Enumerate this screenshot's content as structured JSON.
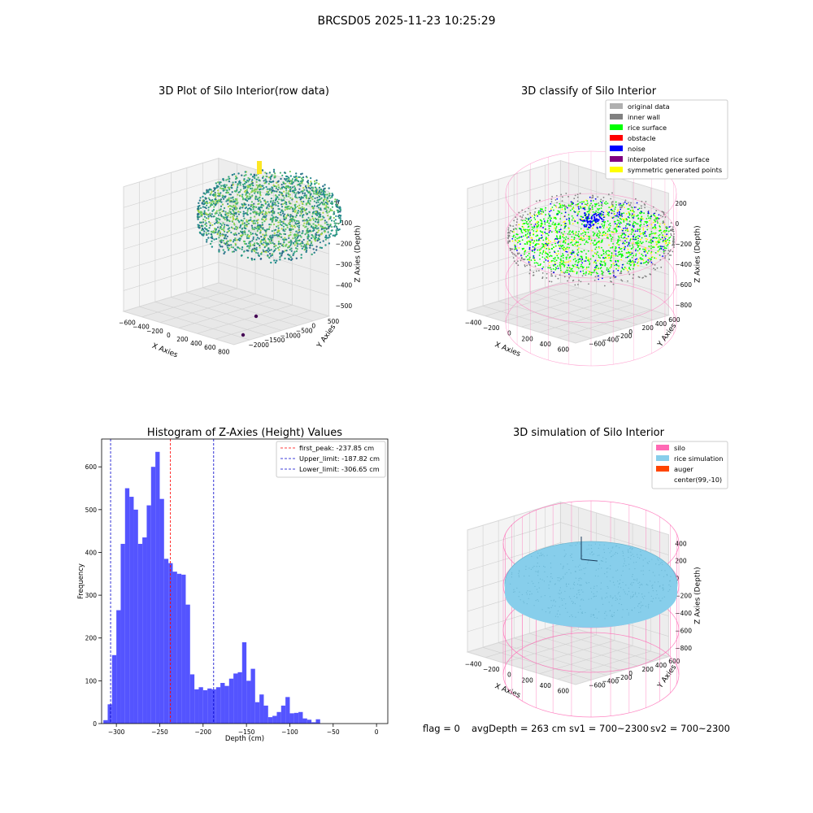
{
  "figure": {
    "suptitle": "BRCSD05 2025-11-23 10:25:29",
    "footer": {
      "flag": "flag = 0",
      "avg": "avgDepth = 263 cm",
      "sv1": "sv1 = 700~2300",
      "sv2": "sv2 = 700~2300"
    }
  },
  "colors": {
    "hist_bar": "#4b4bff",
    "peak_line": "#ff0000",
    "limit_line": "#0000cc",
    "silo_pink": "#ff69b4",
    "rice_sim": "#87ceeb",
    "auger": "#ff4500",
    "inner_wall": "#808080",
    "rice_surface": "#00ff00",
    "obstacle": "#ff0000",
    "noise": "#0000ff",
    "interp_surface": "#800080",
    "symmetric": "#ffff00",
    "original": "#b0b0b0"
  },
  "chart_data": [
    {
      "type": "scatter",
      "subtype": "3d",
      "title": "3D Plot of Silo Interior(row data)",
      "xlabel": "X Axies",
      "ylabel": "Y Axies",
      "zlabel": "Z Axies (Depth)",
      "xticks": [
        "−600",
        "−400",
        "−200",
        "0",
        "200",
        "400",
        "600",
        "800"
      ],
      "yticks": [
        "500",
        "0",
        "−500",
        "−1000",
        "−1500",
        "−2000"
      ],
      "zticks": [
        "0",
        "−100",
        "−200",
        "−300",
        "−400",
        "−500"
      ],
      "colormap": "viridis"
    },
    {
      "type": "scatter",
      "subtype": "3d",
      "title": "3D classify of Silo Interior",
      "xlabel": "X Axies",
      "ylabel": "Y Axies",
      "zlabel": "Z Axies (Depth)",
      "xticks": [
        "−400",
        "−200",
        "0",
        "200",
        "400",
        "600"
      ],
      "yticks": [
        "600",
        "400",
        "200",
        "0",
        "−200",
        "−400",
        "−600"
      ],
      "zticks": [
        "200",
        "0",
        "−200",
        "−400",
        "−600",
        "−800"
      ],
      "legend": [
        {
          "label": "original data",
          "color": "#b0b0b0"
        },
        {
          "label": "inner wall",
          "color": "#808080"
        },
        {
          "label": "rice surface",
          "color": "#00ff00"
        },
        {
          "label": "obstacle",
          "color": "#ff0000"
        },
        {
          "label": "noise",
          "color": "#0000ff"
        },
        {
          "label": "interpolated rice surface",
          "color": "#800080"
        },
        {
          "label": "symmetric generated points",
          "color": "#ffff00"
        }
      ],
      "legend_position": "top-right"
    },
    {
      "type": "bar",
      "subtype": "histogram",
      "title": "Histogram of Z-Axies (Height) Values",
      "xlabel": "Depth (cm)",
      "ylabel": "Frequency",
      "xlim": [
        -317,
        13
      ],
      "ylim": [
        0,
        665
      ],
      "xticks": [
        -300,
        -250,
        -200,
        -150,
        -100,
        -50,
        0
      ],
      "yticks": [
        0,
        100,
        200,
        300,
        400,
        500,
        600
      ],
      "bin_start": -315,
      "bin_width": 5,
      "values": [
        8,
        45,
        160,
        265,
        420,
        550,
        530,
        500,
        420,
        435,
        510,
        600,
        635,
        525,
        385,
        375,
        355,
        350,
        348,
        278,
        115,
        80,
        85,
        78,
        82,
        80,
        85,
        95,
        88,
        105,
        117,
        120,
        190,
        100,
        128,
        50,
        68,
        42,
        15,
        18,
        27,
        42,
        62,
        24,
        25,
        27,
        12,
        9,
        3,
        10
      ],
      "vlines": [
        {
          "x": -237.85,
          "color": "#ff0000",
          "label": "first_peak: -237.85 cm"
        },
        {
          "x": -187.82,
          "color": "#0000cc",
          "label": "Upper_limit: -187.82 cm"
        },
        {
          "x": -306.65,
          "color": "#0000cc",
          "label": "Lower_limit: -306.65 cm"
        }
      ],
      "legend_position": "top-right"
    },
    {
      "type": "scatter",
      "subtype": "3d",
      "title": "3D simulation of Silo Interior",
      "xlabel": "X Axies",
      "ylabel": "Y Axies",
      "zlabel": "Z Axies (Depth)",
      "xticks": [
        "−400",
        "−200",
        "0",
        "200",
        "400",
        "600"
      ],
      "yticks": [
        "600",
        "400",
        "200",
        "0",
        "−200",
        "−400",
        "−600"
      ],
      "zticks": [
        "400",
        "200",
        "0",
        "−200",
        "−400",
        "−600",
        "−800"
      ],
      "legend": [
        {
          "label": "silo",
          "color": "#ff69b4"
        },
        {
          "label": "rice simulation",
          "color": "#87ceeb"
        },
        {
          "label": "auger",
          "color": "#ff4500"
        },
        {
          "label": "center(99,-10)",
          "color": ""
        }
      ],
      "legend_position": "top-right"
    }
  ]
}
